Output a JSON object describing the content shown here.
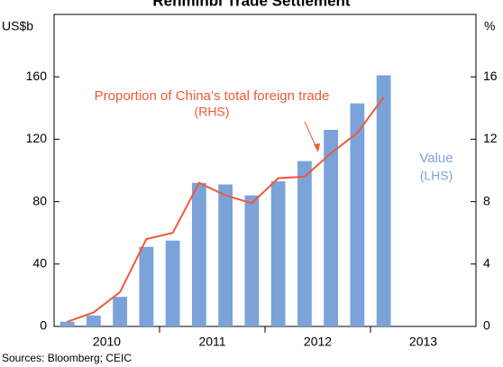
{
  "chart_data": {
    "type": "bar_line",
    "title": "Renminbi Trade Settlement",
    "y_label": "US$b",
    "y2_label": "%",
    "categories": [
      null,
      null,
      null,
      null,
      null,
      null,
      null,
      null,
      null,
      null,
      null,
      null,
      null
    ],
    "year_labels": [
      "2010",
      "2011",
      "2012",
      "2013"
    ],
    "series": [
      {
        "name": "Value",
        "name_note": "(LHS)",
        "color": "#7ba3d9",
        "values": [
          3,
          7,
          19,
          51,
          55,
          92,
          91,
          84,
          93,
          106,
          126,
          143,
          161
        ]
      },
      {
        "name": "Proportion of China’s total foreign trade",
        "name_note": "(RHS)",
        "color": "#ee5a36",
        "axis": "y2",
        "values": [
          0.3,
          0.9,
          2.2,
          5.6,
          6.0,
          9.2,
          8.4,
          7.9,
          9.5,
          9.6,
          11.1,
          12.4,
          14.7
        ]
      }
    ],
    "ylim": [
      0,
      200
    ],
    "yticks": [
      0,
      40,
      80,
      120,
      160
    ],
    "y2lim": [
      0,
      20
    ],
    "y2ticks": [
      0,
      4,
      8,
      12,
      16
    ],
    "source": "Sources: Bloomberg; CEIC"
  }
}
